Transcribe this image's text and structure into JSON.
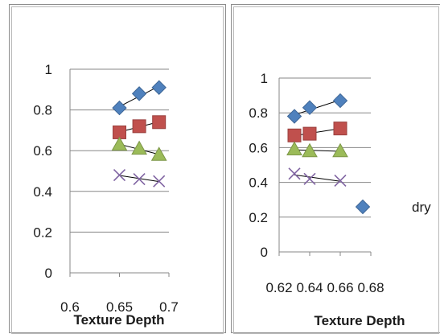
{
  "chart_data": [
    {
      "type": "scatter",
      "title": "",
      "xlabel": "Texture Depth",
      "ylabel": "",
      "xlim": [
        0.6,
        0.7
      ],
      "ylim": [
        0,
        1
      ],
      "x_ticks": [
        "0.6",
        "0.65",
        "0.7"
      ],
      "y_ticks": [
        "0",
        "0.2",
        "0.4",
        "0.6",
        "0.8",
        "1"
      ],
      "grid": true,
      "trendlines": true,
      "series": [
        {
          "x": [
            0.65,
            0.67,
            0.69
          ],
          "y": [
            0.81,
            0.88,
            0.91
          ],
          "marker": "diamond",
          "color": "#4f81bd"
        },
        {
          "x": [
            0.65,
            0.67,
            0.69
          ],
          "y": [
            0.69,
            0.72,
            0.74
          ],
          "marker": "square",
          "color": "#c0504d"
        },
        {
          "x": [
            0.65,
            0.67,
            0.69
          ],
          "y": [
            0.63,
            0.61,
            0.58
          ],
          "marker": "triangle",
          "color": "#9bbb59"
        },
        {
          "x": [
            0.65,
            0.67,
            0.69
          ],
          "y": [
            0.48,
            0.46,
            0.45
          ],
          "marker": "x",
          "color": "#8064a2"
        }
      ]
    },
    {
      "type": "scatter",
      "title": "",
      "xlabel": "Texture Depth",
      "ylabel": "",
      "xlim": [
        0.62,
        0.68
      ],
      "ylim": [
        0,
        1
      ],
      "x_ticks": [
        "0.62",
        "0.64",
        "0.66",
        "0.68"
      ],
      "y_ticks": [
        "0",
        "0.2",
        "0.4",
        "0.6",
        "0.8",
        "1"
      ],
      "grid": true,
      "trendlines": true,
      "legend": {
        "position": "right",
        "entries": [
          {
            "label": "dry",
            "marker": "diamond",
            "color": "#4f81bd"
          }
        ]
      },
      "series": [
        {
          "name": "dry",
          "x": [
            0.63,
            0.64,
            0.66
          ],
          "y": [
            0.78,
            0.83,
            0.87
          ],
          "marker": "diamond",
          "color": "#4f81bd"
        },
        {
          "x": [
            0.63,
            0.64,
            0.66
          ],
          "y": [
            0.67,
            0.68,
            0.71
          ],
          "marker": "square",
          "color": "#c0504d"
        },
        {
          "x": [
            0.63,
            0.64,
            0.66
          ],
          "y": [
            0.59,
            0.58,
            0.58
          ],
          "marker": "triangle",
          "color": "#9bbb59"
        },
        {
          "x": [
            0.63,
            0.64,
            0.66
          ],
          "y": [
            0.45,
            0.42,
            0.41
          ],
          "marker": "x",
          "color": "#8064a2"
        }
      ]
    }
  ]
}
